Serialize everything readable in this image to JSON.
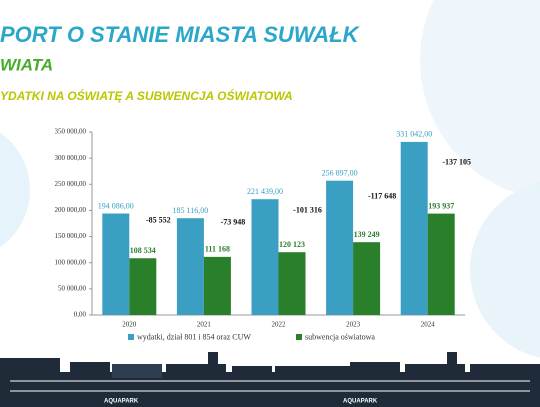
{
  "header": {
    "title": "PORT O STANIE MIASTA SUWAŁK",
    "subtitle": "WIATA",
    "section": "YDATKI NA OŚWIATĘ A SUBWENCJA OŚWIATOWA"
  },
  "chart_data": {
    "type": "bar",
    "categories": [
      "2020",
      "2021",
      "2022",
      "2023",
      "2024"
    ],
    "series": [
      {
        "name": "wydatki, dział 801 i 854 oraz CUW",
        "color": "#3a9fc3",
        "values": [
          194086,
          185116,
          221439,
          256897,
          331042
        ],
        "value_labels": [
          "194 086,00",
          "185 116,00",
          "221 439,00",
          "256 897,00",
          "331 042,00"
        ]
      },
      {
        "name": "subwencja oświatowa",
        "color": "#2a7f2a",
        "values": [
          108534,
          111168,
          120123,
          139249,
          193937
        ],
        "value_labels": [
          "108 534",
          "111 168",
          "120 123",
          "139 249",
          "193 937"
        ]
      }
    ],
    "annotations": [
      "-85 552",
      "-73 948",
      "-101 316",
      "-117 648",
      "-137 105"
    ],
    "ylim": [
      0,
      350000
    ],
    "yticks": [
      {
        "value": 0,
        "label": "0,00"
      },
      {
        "value": 50000,
        "label": "50 000,00"
      },
      {
        "value": 100000,
        "label": "100 000,00"
      },
      {
        "value": 150000,
        "label": "150 000,00"
      },
      {
        "value": 200000,
        "label": "200 000,00"
      },
      {
        "value": 250000,
        "label": "250 000,00"
      },
      {
        "value": 300000,
        "label": "300 000,00"
      },
      {
        "value": 350000,
        "label": "350 000,00"
      }
    ],
    "legend": "bottom"
  },
  "footer": {
    "skyline_label": "AQUAPARK"
  }
}
